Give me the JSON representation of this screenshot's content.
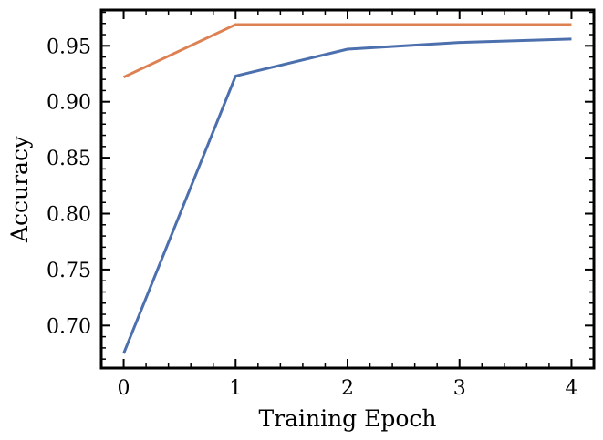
{
  "chart_data": {
    "type": "line",
    "title": "",
    "xlabel": "Training Epoch",
    "ylabel": "Accuracy",
    "x": [
      0,
      1,
      2,
      3,
      4
    ],
    "xticks": [
      "0",
      "1",
      "2",
      "3",
      "4"
    ],
    "yticks": [
      "0.70",
      "0.75",
      "0.80",
      "0.85",
      "0.90",
      "0.95"
    ],
    "xlim": [
      -0.2,
      4.2
    ],
    "ylim": [
      0.662,
      0.982
    ],
    "grid": false,
    "legend": "none",
    "series": [
      {
        "color": "#4c6fad",
        "values": [
          0.675,
          0.923,
          0.947,
          0.953,
          0.956
        ]
      },
      {
        "color": "#de8152",
        "values": [
          0.922,
          0.969,
          0.969,
          0.969,
          0.969
        ]
      }
    ]
  }
}
